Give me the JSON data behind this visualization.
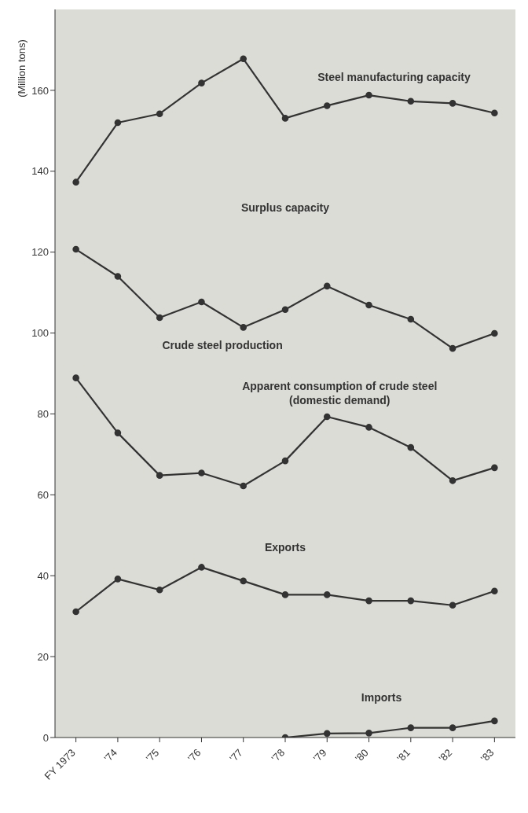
{
  "chart_data": {
    "type": "line",
    "ylabel": "(Million tons)",
    "categories": [
      "FY 1973",
      "'74",
      "'75",
      "'76",
      "'77",
      "'78",
      "'79",
      "'80",
      "'81",
      "'82",
      "'83"
    ],
    "series": [
      {
        "name": "Steel manufacturing capacity",
        "color": "#333333",
        "values": [
          137.3,
          152.0,
          154.2,
          161.8,
          167.8,
          153.1,
          156.2,
          158.8,
          157.3,
          156.8,
          154.4
        ]
      },
      {
        "name": "Crude steel production",
        "color": "#333333",
        "values": [
          120.7,
          114.0,
          103.8,
          107.7,
          101.4,
          105.8,
          111.6,
          106.9,
          103.4,
          96.2,
          99.9
        ]
      },
      {
        "name": "Apparent consumption of crude steel (domestic demand)",
        "color": "#333333",
        "values": [
          88.9,
          75.3,
          64.8,
          65.4,
          62.2,
          68.4,
          79.3,
          76.7,
          71.7,
          63.5,
          66.7
        ]
      },
      {
        "name": "Exports",
        "color": "#333333",
        "values": [
          31.1,
          39.2,
          36.5,
          42.1,
          38.7,
          35.3,
          35.3,
          33.8,
          33.8,
          32.7,
          36.2
        ]
      },
      {
        "name": "Imports",
        "color": "#333333",
        "values": [
          null,
          null,
          null,
          null,
          null,
          0,
          1.0,
          1.1,
          2.4,
          2.4,
          4.1
        ]
      }
    ],
    "ylim": [
      0,
      180
    ],
    "yticks": [
      0,
      20,
      40,
      60,
      80,
      100,
      120,
      140,
      160
    ],
    "marker": "circle",
    "line_style": "solid",
    "legend": false,
    "annotations": [
      "Surplus capacity"
    ]
  }
}
